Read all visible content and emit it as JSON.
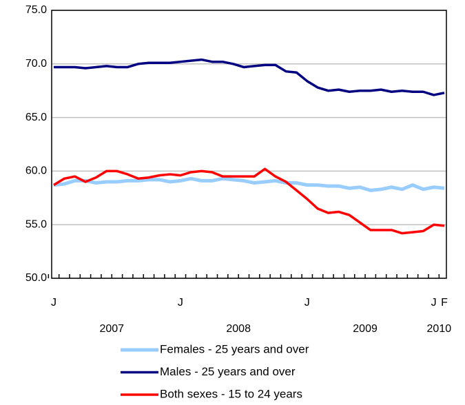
{
  "chart_data": {
    "type": "line",
    "categories": [
      "J",
      null,
      null,
      null,
      null,
      null,
      null,
      null,
      null,
      null,
      null,
      null,
      "J",
      null,
      null,
      null,
      null,
      null,
      null,
      null,
      null,
      null,
      null,
      null,
      "J",
      null,
      null,
      null,
      null,
      null,
      null,
      null,
      null,
      null,
      null,
      null,
      "J",
      "F"
    ],
    "year_labels": [
      "2007",
      "2008",
      "2009",
      "2010"
    ],
    "series": [
      {
        "name": "Females - 25 years and over",
        "color": "#99ccff",
        "values": [
          58.7,
          58.8,
          59.1,
          59.1,
          58.9,
          59.0,
          59.0,
          59.1,
          59.1,
          59.2,
          59.2,
          59.0,
          59.1,
          59.3,
          59.1,
          59.1,
          59.3,
          59.2,
          59.1,
          58.9,
          59.0,
          59.1,
          58.9,
          58.9,
          58.7,
          58.7,
          58.6,
          58.6,
          58.4,
          58.5,
          58.2,
          58.3,
          58.5,
          58.3,
          58.7,
          58.3,
          58.5,
          58.4
        ]
      },
      {
        "name": "Males - 25 years and over",
        "color": "#000080",
        "values": [
          69.7,
          69.7,
          69.7,
          69.6,
          69.7,
          69.8,
          69.7,
          69.7,
          70.0,
          70.1,
          70.1,
          70.1,
          70.2,
          70.3,
          70.4,
          70.2,
          70.2,
          70.0,
          69.7,
          69.8,
          69.9,
          69.9,
          69.3,
          69.2,
          68.4,
          67.8,
          67.5,
          67.6,
          67.4,
          67.5,
          67.5,
          67.6,
          67.4,
          67.5,
          67.4,
          67.4,
          67.1,
          67.3
        ]
      },
      {
        "name": "Both sexes - 15 to 24 years",
        "color": "#ff0000",
        "values": [
          58.7,
          59.3,
          59.5,
          59.0,
          59.4,
          60.0,
          60.0,
          59.7,
          59.3,
          59.4,
          59.6,
          59.7,
          59.6,
          59.9,
          60.0,
          59.9,
          59.5,
          59.5,
          59.5,
          59.5,
          60.2,
          59.5,
          59.0,
          58.2,
          57.4,
          56.5,
          56.1,
          56.2,
          55.9,
          55.2,
          54.5,
          54.5,
          54.5,
          54.2,
          54.3,
          54.4,
          55.0,
          54.9
        ]
      }
    ],
    "ylim": [
      50,
      75
    ],
    "yticks": [
      {
        "value": 50,
        "label": "50.0"
      },
      {
        "value": 55,
        "label": "55.0"
      },
      {
        "value": 60,
        "label": "60.0"
      },
      {
        "value": 65,
        "label": "65.0"
      },
      {
        "value": 70,
        "label": "70.0"
      },
      {
        "value": 75,
        "label": "75.0"
      }
    ],
    "grid": true
  }
}
